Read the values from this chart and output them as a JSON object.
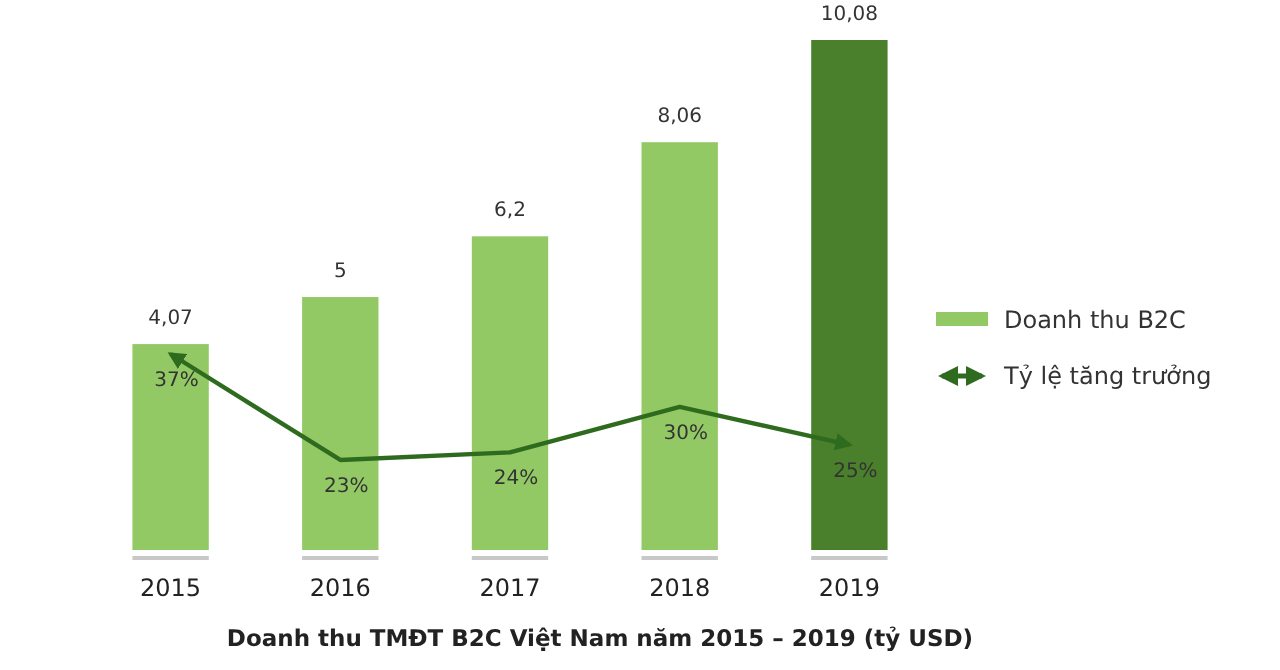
{
  "chart_data": {
    "type": "bar",
    "title": "Doanh thu TMĐT B2C Việt Nam năm 2015 – 2019 (tỷ USD)",
    "categories": [
      "2015",
      "2016",
      "2017",
      "2018",
      "2019"
    ],
    "legend": "right",
    "series": [
      {
        "name": "Doanh thu B2C",
        "color": "#92c964",
        "colors": [
          "#92c964",
          "#92c964",
          "#92c964",
          "#92c964",
          "#4a7f2c"
        ],
        "values": [
          4.07,
          5,
          6.2,
          8.06,
          10.08
        ],
        "value_labels": [
          "4,07",
          "5",
          "6,2",
          "8,06",
          "10,08"
        ]
      },
      {
        "name": "Tỷ lệ tăng trưởng",
        "type": "line",
        "axis": "y2",
        "color": "#2f6b1f",
        "line_style": "solid",
        "values": [
          37,
          23,
          24,
          30,
          25
        ],
        "value_labels": [
          "37%",
          "23%",
          "24%",
          "30%",
          "25%"
        ]
      }
    ]
  }
}
